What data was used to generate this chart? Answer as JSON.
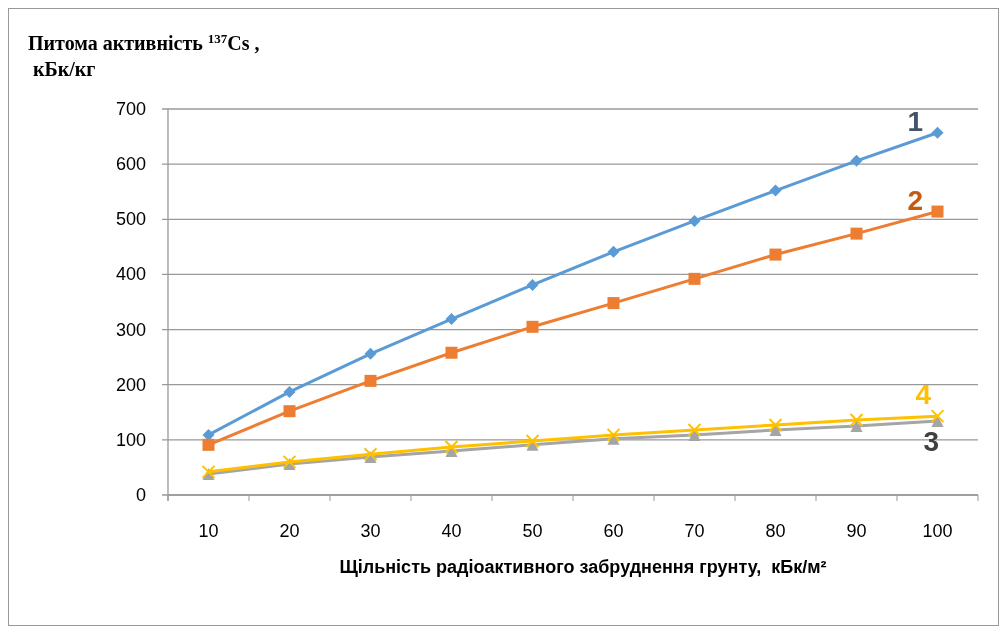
{
  "chart_data": {
    "type": "line",
    "ylabel": "Питома активність $^{137}$Cs ,\n кБк/кг",
    "xlabel": "Щільність радіоактивного забруднення грунту,  кБк/м²",
    "categories": [
      "10",
      "20",
      "30",
      "40",
      "50",
      "60",
      "70",
      "80",
      "90",
      "100"
    ],
    "series": [
      {
        "name": "1",
        "color": "#5b9bd5",
        "marker": "diamond",
        "values": [
          109,
          187,
          256,
          319,
          381,
          441,
          497,
          552,
          606,
          657
        ]
      },
      {
        "name": "2",
        "color": "#ed7d31",
        "marker": "square",
        "values": [
          91,
          152,
          207,
          258,
          305,
          348,
          392,
          436,
          474,
          514
        ]
      },
      {
        "name": "3",
        "color": "#a5a5a5",
        "marker": "triangle",
        "values": [
          38,
          56,
          69,
          80,
          91,
          102,
          109,
          118,
          125,
          134
        ]
      },
      {
        "name": "4",
        "color": "#ffc000",
        "marker": "cross",
        "values": [
          42,
          60,
          74,
          87,
          98,
          109,
          118,
          127,
          136,
          143
        ]
      }
    ],
    "ylim": [
      0,
      700
    ],
    "yticks": [
      0,
      100,
      200,
      300,
      400,
      500,
      600,
      700
    ],
    "grid": "y",
    "line_style": "solid"
  }
}
